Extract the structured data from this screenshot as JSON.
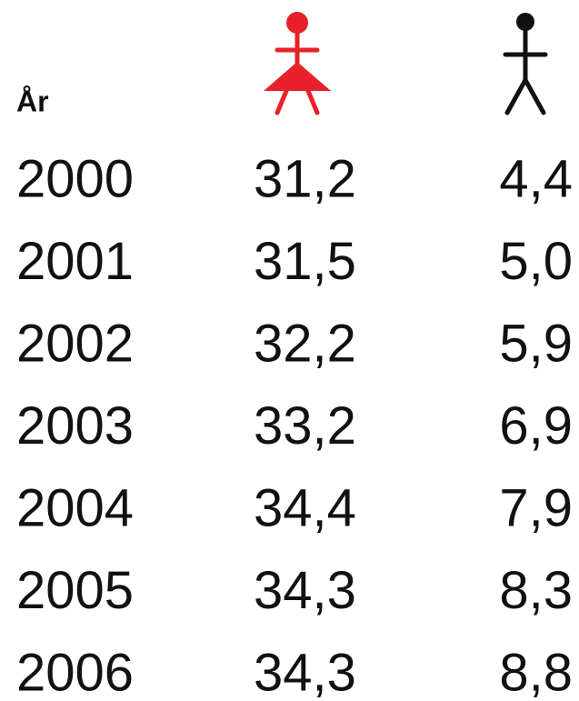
{
  "table": {
    "header": {
      "year": "År"
    },
    "rows": [
      [
        "2000",
        "31,2",
        "4,4"
      ],
      [
        "2001",
        "31,5",
        "5,0"
      ],
      [
        "2002",
        "32,2",
        "5,9"
      ],
      [
        "2003",
        "33,2",
        "6,9"
      ],
      [
        "2004",
        "34,4",
        "7,9"
      ],
      [
        "2005",
        "34,3",
        "8,3"
      ],
      [
        "2006",
        "34,3",
        "8,8"
      ]
    ]
  }
}
